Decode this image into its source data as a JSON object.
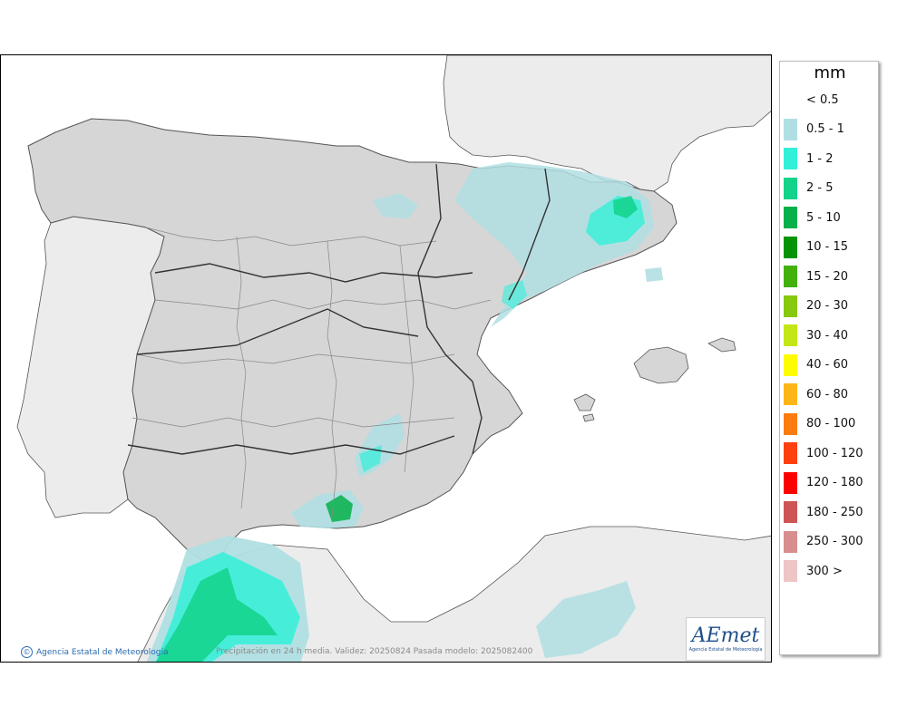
{
  "map": {
    "credit": "Agencia Estatal de Meteorología",
    "caption": "Precipitación en 24 h media. Validez: 20250824 Pasada modelo: 2025082400",
    "logo": {
      "text": "AEmet",
      "subtitle": "Agencia Estatal de Meteorología"
    }
  },
  "legend": {
    "unit": "mm",
    "items": [
      {
        "label": "< 0.5",
        "color": "#ffffff"
      },
      {
        "label": "0.5 - 1",
        "color": "#b0dfe3"
      },
      {
        "label": "1 - 2",
        "color": "#33f0d8"
      },
      {
        "label": "2 - 5",
        "color": "#13d28a"
      },
      {
        "label": "5 - 10",
        "color": "#06b04a"
      },
      {
        "label": "10 - 15",
        "color": "#069406"
      },
      {
        "label": "15 - 20",
        "color": "#43b00b"
      },
      {
        "label": "20 - 30",
        "color": "#86c90d"
      },
      {
        "label": "30 - 40",
        "color": "#c3e617"
      },
      {
        "label": "40 - 60",
        "color": "#fdfd00"
      },
      {
        "label": "60 - 80",
        "color": "#fdb618"
      },
      {
        "label": "80 - 100",
        "color": "#fd7c0f"
      },
      {
        "label": "100 - 120",
        "color": "#fd400d"
      },
      {
        "label": "120 - 180",
        "color": "#fd0000"
      },
      {
        "label": "180 - 250",
        "color": "#cd5555"
      },
      {
        "label": "250 - 300",
        "color": "#d98e8e"
      },
      {
        "label": "300 >",
        "color": "#eec5c5"
      }
    ]
  }
}
